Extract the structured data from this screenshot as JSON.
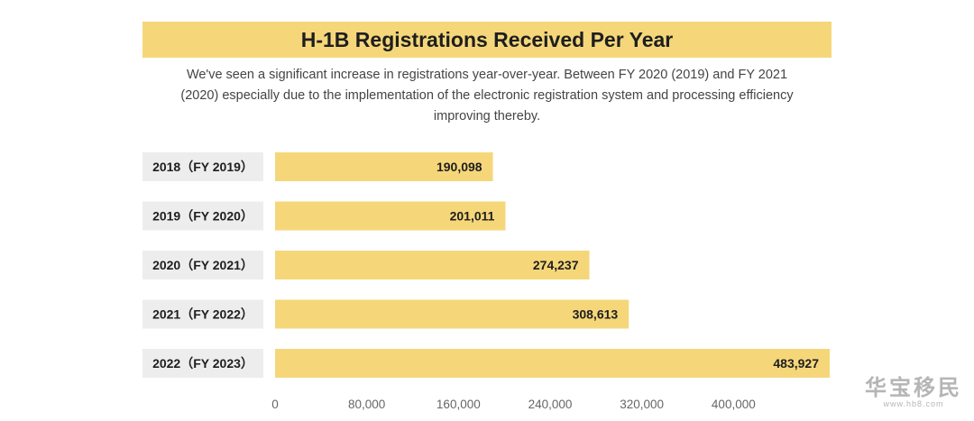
{
  "colors": {
    "title_bg": "#f5d77a",
    "bar": "#f5d77a",
    "label_bg": "#ededed",
    "text": "#1e1e1e",
    "axis_text": "#666666"
  },
  "chart_data": {
    "type": "bar",
    "orientation": "horizontal",
    "title": "H-1B Registrations Received Per Year",
    "subtitle": "We've seen a significant increase in registrations year-over-year. Between FY 2020 (2019) and FY 2021 (2020) especially due to the implementation of the electronic registration system and processing efficiency improving thereby.",
    "categories": [
      "2018（FY 2019）",
      "2019（FY 2020）",
      "2020（FY 2021）",
      "2021（FY 2022）",
      "2022（FY 2023）"
    ],
    "values": [
      190098,
      201011,
      274237,
      308613,
      483927
    ],
    "value_labels": [
      "190,098",
      "201,011",
      "274,237",
      "308,613",
      "483,927"
    ],
    "xlim": [
      0,
      483927
    ],
    "xticks": [
      0,
      80000,
      160000,
      240000,
      320000,
      400000
    ],
    "xtick_labels": [
      "0",
      "80,000",
      "160,000",
      "240,000",
      "320,000",
      "400,000"
    ],
    "grid": false,
    "legend": "none"
  },
  "watermark": {
    "logo": "华宝移民",
    "url": "www.hb8.com"
  }
}
